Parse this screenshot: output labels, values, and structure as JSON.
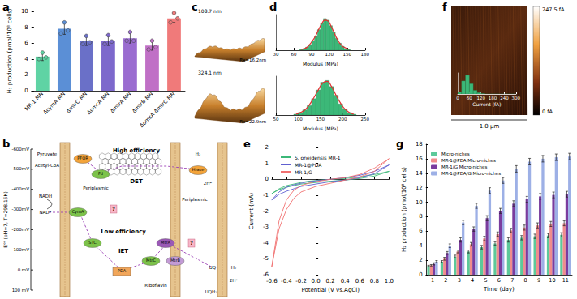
{
  "chart_data": [
    {
      "panel": "a",
      "type": "bar",
      "categories": [
        "MR-1-MN",
        "ΔcymA-MN",
        "ΔmtrC-MN",
        "ΔomcA-MN",
        "ΔmtrA-MN",
        "ΔmtrB-MN",
        "ΔomcA-ΔmtrC-MN"
      ],
      "values": [
        4.3,
        7.8,
        6.3,
        6.3,
        6.6,
        5.7,
        9.1
      ],
      "errors": [
        0.5,
        0.7,
        0.6,
        0.6,
        0.6,
        0.6,
        0.5
      ],
      "points": [
        [
          4.0,
          4.8,
          4.2
        ],
        [
          7.2,
          8.6,
          7.6
        ],
        [
          5.9,
          6.9,
          6.1
        ],
        [
          5.9,
          7.0,
          6.2
        ],
        [
          6.3,
          7.4,
          6.3
        ],
        [
          5.2,
          6.3,
          5.5
        ],
        [
          8.6,
          9.8,
          9.1
        ]
      ],
      "colors": [
        "#5fd3a4",
        "#5b8fd6",
        "#6a70c8",
        "#7d68cc",
        "#9a6cd0",
        "#c070c6",
        "#f07a7a"
      ],
      "ylabel": "H₂ production (pmol/10⁸ cells)",
      "ylim": [
        0,
        10
      ],
      "yticks": [
        0,
        2,
        4,
        6,
        8,
        10
      ],
      "grid": false
    },
    {
      "panel": "d",
      "type": "histogram",
      "bins": [
        70,
        75,
        80,
        85,
        90,
        95,
        100,
        105,
        110,
        115,
        120,
        125,
        130,
        135,
        140,
        145,
        150,
        155
      ],
      "counts": [
        1,
        2,
        4,
        7,
        12,
        18,
        26,
        34,
        40,
        38,
        31,
        23,
        15,
        9,
        5,
        2,
        1
      ],
      "fit": [
        1,
        2,
        4,
        8,
        13,
        19,
        27,
        34,
        38,
        37,
        31,
        23,
        15,
        9,
        5,
        3,
        1
      ],
      "xlabel": "Modulus (MPa)",
      "xlim": [
        30,
        180
      ],
      "xticks": [
        30,
        60,
        90,
        120,
        150,
        180
      ],
      "ylim": [
        0,
        45
      ],
      "color": "#3cb878",
      "fit_color": "#e03030",
      "tick_labels": "x"
    },
    {
      "type": "histogram",
      "bins": [
        90,
        100,
        110,
        120,
        130,
        140,
        150,
        160,
        170,
        180,
        190,
        200,
        210,
        220,
        230
      ],
      "counts": [
        1,
        3,
        6,
        11,
        19,
        29,
        38,
        40,
        33,
        23,
        13,
        7,
        3,
        1
      ],
      "fit": [
        1,
        3,
        6,
        12,
        20,
        29,
        37,
        39,
        33,
        23,
        14,
        7,
        3,
        1
      ],
      "xlabel": "Modulus (MPa)",
      "xlim": [
        50,
        250
      ],
      "xticks": [
        50,
        100,
        150,
        200,
        250
      ],
      "ylim": [
        0,
        45
      ],
      "color": "#3cb878",
      "fit_color": "#e03030",
      "tick_labels": "x"
    },
    {
      "panel": "e",
      "type": "line",
      "x": [
        -0.6,
        -0.5,
        -0.4,
        -0.3,
        -0.2,
        -0.1,
        0,
        0.2,
        0.4,
        0.6,
        0.8,
        1.0,
        0.8,
        0.6,
        0.4,
        0.2,
        0,
        -0.2,
        -0.3,
        -0.4,
        -0.5,
        -0.6
      ],
      "series": [
        {
          "name": "S. oneidensis MR-1",
          "color": "#3cb878",
          "values": [
            -0.9,
            -0.6,
            -0.4,
            -0.3,
            -0.2,
            -0.12,
            -0.08,
            0.0,
            0.05,
            0.15,
            0.3,
            0.5,
            0.2,
            0.05,
            -0.05,
            -0.12,
            -0.2,
            -0.3,
            -0.4,
            -0.5,
            -0.65,
            -0.9
          ]
        },
        {
          "name": "MR-1@PDA",
          "color": "#6060d0",
          "values": [
            -1.3,
            -0.8,
            -0.5,
            -0.35,
            -0.25,
            -0.15,
            -0.1,
            0.0,
            0.1,
            0.25,
            0.5,
            0.9,
            0.35,
            0.1,
            -0.05,
            -0.15,
            -0.3,
            -0.45,
            -0.6,
            -0.75,
            -0.95,
            -1.3
          ]
        },
        {
          "name": "MR-1/G",
          "color": "#f07070",
          "values": [
            -5.5,
            -2.6,
            -1.3,
            -0.7,
            -0.4,
            -0.25,
            -0.15,
            0.0,
            0.1,
            0.3,
            0.7,
            1.3,
            0.5,
            0.15,
            -0.05,
            -0.25,
            -0.45,
            -0.8,
            -1.2,
            -1.9,
            -3.1,
            -5.5
          ]
        }
      ],
      "xlabel": "Potential (V vs.AgCl)",
      "ylabel": "Current (mA)",
      "xlim": [
        -0.6,
        1.0
      ],
      "xticks": [
        -0.6,
        -0.4,
        -0.2,
        {
          "value": 0,
          "label": "0.0"
        },
        0.2,
        0.4,
        0.6,
        0.8,
        {
          "value": 1.0,
          "label": "1.0"
        }
      ],
      "ylim": [
        -6,
        2
      ],
      "yticks": [
        -6,
        -5,
        -4,
        -3,
        -2,
        -1,
        0,
        1,
        2
      ],
      "legend": "upper left",
      "grid": false
    },
    {
      "type": "histogram",
      "bins": [
        0,
        20,
        40,
        60,
        80,
        100,
        120,
        140,
        160,
        180,
        200,
        220,
        240,
        260,
        280,
        300
      ],
      "counts": [
        4,
        28,
        40,
        22,
        8,
        3,
        1,
        0,
        0,
        0,
        0,
        0,
        0,
        0,
        0
      ],
      "xlabel": "Current (fA)",
      "xlim": [
        0,
        300
      ],
      "xticks": [
        0,
        60,
        120,
        180,
        240,
        300
      ],
      "ylim": [
        0,
        45
      ],
      "color": "#3cb878",
      "tick_labels": "x"
    },
    {
      "panel": "g",
      "type": "bar",
      "categories": [
        "1",
        "2",
        "3",
        "4",
        "5",
        "6",
        "7",
        "8",
        "9",
        "10",
        "11"
      ],
      "series": [
        {
          "name": "Micro-niches",
          "color": "#5cc99a",
          "values": [
            1.2,
            1.8,
            2.5,
            3.2,
            3.8,
            4.3,
            4.8,
            5.1,
            5.3,
            5.4,
            5.5
          ],
          "errors": [
            0.1,
            0.15,
            0.2,
            0.2,
            0.25,
            0.25,
            0.3,
            0.3,
            0.3,
            0.3,
            0.3
          ]
        },
        {
          "name": "MR-1@PDA Micro-niches",
          "color": "#f08c8c",
          "values": [
            1.3,
            2.2,
            3.2,
            4.2,
            5.0,
            5.6,
            6.1,
            6.5,
            6.8,
            7.0,
            7.1
          ],
          "errors": [
            0.1,
            0.2,
            0.2,
            0.25,
            0.3,
            0.3,
            0.3,
            0.35,
            0.35,
            0.35,
            0.35
          ]
        },
        {
          "name": "MR-1/G Micro-niches",
          "color": "#7a3c9e",
          "values": [
            1.5,
            3.0,
            4.8,
            6.3,
            7.8,
            8.8,
            9.8,
            10.4,
            10.8,
            11.0,
            11.1
          ],
          "errors": [
            0.15,
            0.2,
            0.3,
            0.3,
            0.35,
            0.35,
            0.4,
            0.4,
            0.4,
            0.4,
            0.4
          ]
        },
        {
          "name": "MR-1@PDA/G Micro-niches",
          "color": "#9db0e6",
          "values": [
            1.8,
            4.0,
            7.2,
            9.5,
            11.6,
            13.0,
            14.6,
            15.6,
            16.0,
            16.2,
            16.3
          ],
          "errors": [
            0.15,
            0.25,
            0.3,
            0.35,
            0.4,
            0.4,
            0.45,
            0.45,
            0.45,
            0.45,
            0.45
          ]
        }
      ],
      "xlabel": "Time (day)",
      "ylabel": "H₂ production (pmol/10⁸ cells)",
      "ylim": [
        0,
        18
      ],
      "yticks": [
        0,
        2,
        4,
        6,
        8,
        10,
        12,
        14,
        16,
        18
      ],
      "legend": "upper left",
      "grid": false
    }
  ],
  "diagram": {
    "panel": "b",
    "axis_title": "E°' (pH=7, T=298.15K)",
    "axis_ticks": [
      {
        "value": -600,
        "label": "-600mV"
      },
      {
        "value": -500,
        "label": "-500mV"
      },
      {
        "value": -400,
        "label": "-400mV"
      },
      {
        "value": -300,
        "label": "-300mV"
      },
      {
        "value": -200,
        "label": "-200mV"
      },
      {
        "value": -100,
        "label": "-100mV"
      },
      {
        "value": 0,
        "label": "0 mV"
      },
      {
        "value": 100,
        "label": "100 mV"
      }
    ],
    "labels": {
      "pyruvate": "Pyruvate",
      "acetyl": "Acetyl-CoA",
      "pfor": "PFOR",
      "fd": "Fd",
      "nadh": "NADH",
      "nad": "NAD⁺",
      "cyma": "CymA",
      "periplasmic_1": "Periplasmic",
      "periplasmic_2": "Periplasmic",
      "high": "High efficiency",
      "det": "DET",
      "h2ase": "H₂ase",
      "h2_top": "H₂",
      "hplus_top": "2H⁺",
      "low": "Low efficiency",
      "iet": "IET",
      "stc": "STC",
      "mtra": "MtrA",
      "mtrb": "MtrB",
      "mtrc": "MtrC",
      "pda": "PDA",
      "riboflavin": "Riboflavin",
      "uq": "UQ",
      "uqh2": "UQH₂",
      "h2_bottom": "H₂",
      "hplus_bottom": "2H⁺"
    },
    "unknown": "?"
  },
  "images": [
    {
      "panel": "c",
      "surfaces": [
        {
          "height": {
            "value": 108.7,
            "label": "108.7 nm"
          },
          "roughness": {
            "value": 16.2,
            "label": "Ra=16.2nm"
          }
        },
        {
          "height": {
            "value": 324.1,
            "label": "324.1 nm"
          },
          "roughness": {
            "value": 22.9,
            "label": "Ra=22.9nm"
          }
        }
      ]
    },
    {
      "panel": "f",
      "colorbar": {
        "min": {
          "value": 0,
          "label": "0 fA"
        },
        "max": {
          "value": 247.5,
          "label": "247.5 fA"
        }
      },
      "scale_bar": "1.0 μm"
    }
  ]
}
